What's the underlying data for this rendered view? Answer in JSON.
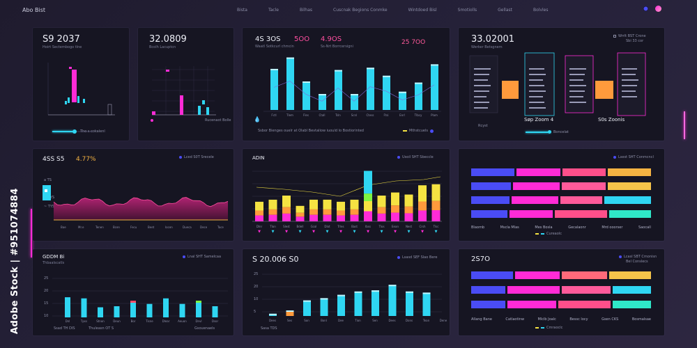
{
  "header": {
    "brand": "Abo Bist",
    "nav": [
      "Bista",
      "Tacle",
      "Bilhas",
      "Cuscnak Begions Conmke",
      "Wintdoed Bisl",
      "Smotiolls",
      "Gellast",
      "Bolvles"
    ]
  },
  "watermark": "Adobe Stock | #951074884",
  "colors": {
    "cyan": "#2fd6f2",
    "magenta": "#ff2bd6",
    "yellow": "#f5e342",
    "blue": "#4a4cf5",
    "orange": "#ff9a3c"
  },
  "panels": {
    "p1": {
      "title": "S9 2037",
      "subtitle": "Hoirt Sectembogo tlne",
      "cap": "Tho s cokalenl",
      "progress": 0.55
    },
    "p2": {
      "title": "32.0809",
      "subtitle": "Bcolh Lacuptcn",
      "cap": "Rucenaot Bolle"
    },
    "p3": {
      "title": "4S 3OS",
      "v2": "5OO",
      "v3": "4.9OS",
      "v4": "25 7OO",
      "sub1": "Waatl Sotkcurl chmcin",
      "sub2": "Ss-Nrt Borrcersigni",
      "caption": "Ssbor Bienges ouelr at Olabl Bevtaliow iuould lo Bostiorinted",
      "legend": "Mthstcuels",
      "x_labels": [
        "Fctl",
        "Tlem",
        "Fles",
        "Ctall",
        "Tsln",
        "Scnl",
        "Ctess",
        "Ftsi",
        "Enrl",
        "Tlbcy",
        "Plam"
      ]
    },
    "p4": {
      "title": "33.02001",
      "subtitle": "Werker Betsgnem",
      "legend1": "Wrrlt BST Crone",
      "legend2": "Sbi 33 cor",
      "foot1": "Søp Zoom 4",
      "foot2": "S0s Zoonis",
      "foot_left": "Rcyst",
      "foot_mid": "Boncelat"
    },
    "p5": {
      "title": "4SS S5",
      "pct": "4.77%",
      "legend": "Lced S0T Srecele",
      "y_labels": [
        "a TS",
        "~ TYS",
        "~ TYS"
      ],
      "x_labels": [
        "Bae",
        "Mr.e",
        "Tenen",
        "Bcen",
        "Fecu",
        "Beet",
        "Iocen",
        "Dueca",
        "Dece",
        "Tace"
      ]
    },
    "p6": {
      "title": "ADIN",
      "legend": "Usoil SHT Sbeccle",
      "x_labels": [
        "Dlnr",
        "Tlon",
        "Slest",
        "Bdell",
        "Gcol",
        "Dlot",
        "Trles",
        "Bast",
        "Ibss",
        "Tlos",
        "Eean",
        "Nest",
        "Crsh",
        "Tlsc"
      ]
    },
    "p7": {
      "legend": "Lsest SHT Conmcncl",
      "rows": [
        [
          {
            "c": "#4a4cf5",
            "w": 0.25
          },
          {
            "c": "#ff2bd6",
            "w": 0.25
          },
          {
            "c": "#ff4f8a",
            "w": 0.25
          },
          {
            "c": "#f5b342",
            "w": 0.25
          }
        ],
        [
          {
            "c": "#4a4cf5",
            "w": 0.23
          },
          {
            "c": "#ff2bd6",
            "w": 0.27
          },
          {
            "c": "#ff5a9a",
            "w": 0.25
          },
          {
            "c": "#f5c44a",
            "w": 0.25
          }
        ],
        [
          {
            "c": "#4a4cf5",
            "w": 0.22
          },
          {
            "c": "#ff2bd6",
            "w": 0.27
          },
          {
            "c": "#ff5a9a",
            "w": 0.24
          },
          {
            "c": "#2fd6f2",
            "w": 0.27
          }
        ],
        [
          {
            "c": "#4a4cf5",
            "w": 0.21
          },
          {
            "c": "#ff2bd6",
            "w": 0.25
          },
          {
            "c": "#ff4f8a",
            "w": 0.3
          },
          {
            "c": "#2fe8c8",
            "w": 0.24
          }
        ]
      ],
      "x_labels": [
        "Blaomb",
        "Mscla Mlas",
        "Mes Bosla",
        "Gecalaonr",
        "Mrd ooorser",
        "Saocall"
      ],
      "legend_bottom": "Cureaolc"
    },
    "p8": {
      "title": "GDDM Bi",
      "subtitle": "Thbaalscatls",
      "legend": "Lnal SHT Samelcaa",
      "y_labels": [
        "25",
        "20",
        "15",
        "10"
      ],
      "x_labels": [
        "Dnl",
        "Tpss",
        "Stnon",
        "Deun",
        "Bor",
        "Tisne",
        "Dlear",
        "Aeuon",
        "Dnvl",
        "Dsor"
      ],
      "foot1": "Ssad TH DIS",
      "foot2": "Thuleasn OT S",
      "foot3": "Gsouenaels"
    },
    "p9": {
      "title": "S 20.006 S0",
      "legend": "Lsasd SEF Slao Bere",
      "y_labels": [
        "25",
        "20",
        "10",
        "5"
      ],
      "x_labels": [
        "Dees",
        "Ses",
        "Son",
        "Bonl",
        "Dee",
        "Tion",
        "Sen",
        "Dees",
        "Dons",
        "Tean",
        "Dene"
      ],
      "foot": "Sasa TDS"
    },
    "p10": {
      "title": "2S7O",
      "legend1": "Lcasl SBT Cmonisn",
      "legend2": "Bel Conslecs",
      "rows": [
        [
          {
            "c": "#4a4cf5",
            "w": 0.24
          },
          {
            "c": "#ff2bd6",
            "w": 0.26
          },
          {
            "c": "#ff6a7a",
            "w": 0.26
          },
          {
            "c": "#f5c44a",
            "w": 0.24
          }
        ],
        [
          {
            "c": "#4a4cf5",
            "w": 0.2
          },
          {
            "c": "#ff2bd6",
            "w": 0.3
          },
          {
            "c": "#ff5a9a",
            "w": 0.28
          },
          {
            "c": "#2fd6f2",
            "w": 0.22
          }
        ],
        [
          {
            "c": "#4a4cf5",
            "w": 0.2
          },
          {
            "c": "#ff2bd6",
            "w": 0.28
          },
          {
            "c": "#ff4f8a",
            "w": 0.3
          },
          {
            "c": "#2fe8c8",
            "w": 0.22
          }
        ]
      ],
      "x_labels": [
        "Allang Bane",
        "Catlaotinw",
        "Mlclb Joalc",
        "Bessc locy",
        "Gsen CKS",
        "Bosmalsae"
      ],
      "legend_bottom": "Cmraoclc"
    }
  }
}
